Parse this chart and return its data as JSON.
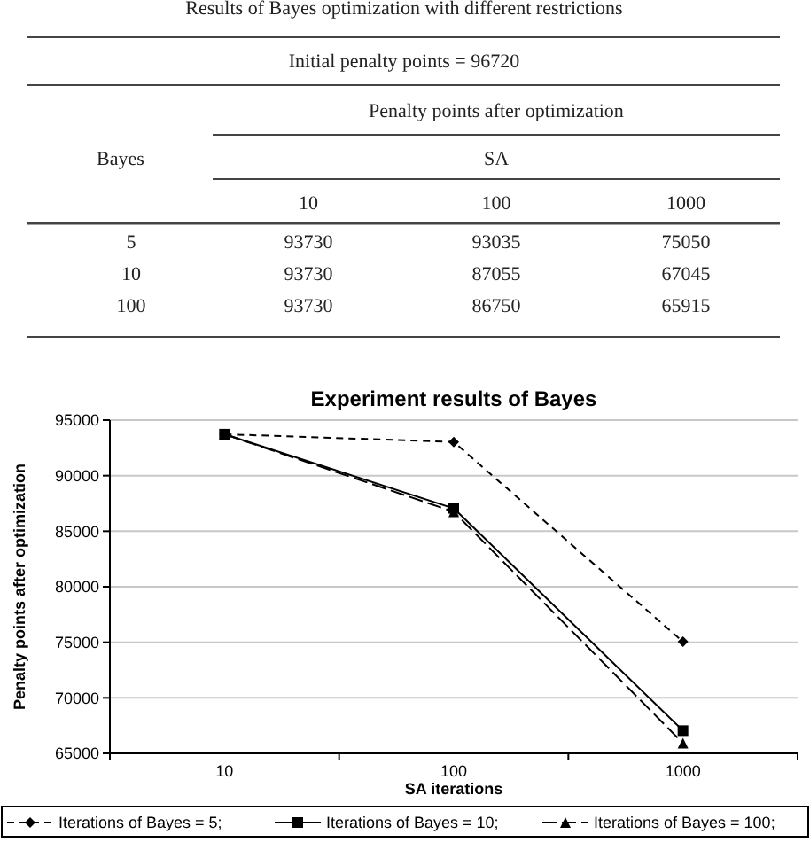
{
  "chart_data": [
    {
      "type": "other",
      "title": "Results of Bayes optimization with different restrictions",
      "subtitle": "Initial penalty points = 96720",
      "annotations": [
        "Penalty points after optimization"
      ],
      "xlabel": "SA",
      "ylabel": "Bayes",
      "categories": [
        "10",
        "100",
        "1000"
      ],
      "y_categories": [
        "5",
        "10",
        "100"
      ]
    },
    {
      "type": "line",
      "title": "Experiment results of Bayes",
      "xlabel": "SA iterations",
      "ylabel": "Penalty points after optimization",
      "categories": [
        "10",
        "100",
        "1000"
      ],
      "ylim": [
        65000,
        95000
      ],
      "yticks": [
        65000,
        70000,
        75000,
        80000,
        85000,
        90000,
        95000
      ],
      "grid": "y",
      "legend": "bottom",
      "data_labels": true,
      "series": [
        {
          "name": "Iterations of Bayes = 5;",
          "color": "#000000",
          "values": [
            93730,
            93035,
            75050
          ],
          "marker": "diamond",
          "line_style": "dashed"
        },
        {
          "name": "Iterations of Bayes = 10;",
          "color": "#000000",
          "values": [
            93730,
            87055,
            67045
          ],
          "marker": "square",
          "line_style": "solid"
        },
        {
          "name": "Iterations of Bayes = 100;",
          "color": "#000000",
          "values": [
            93730,
            86750,
            65915
          ],
          "marker": "triangle",
          "line_style": "longdash"
        }
      ]
    }
  ]
}
